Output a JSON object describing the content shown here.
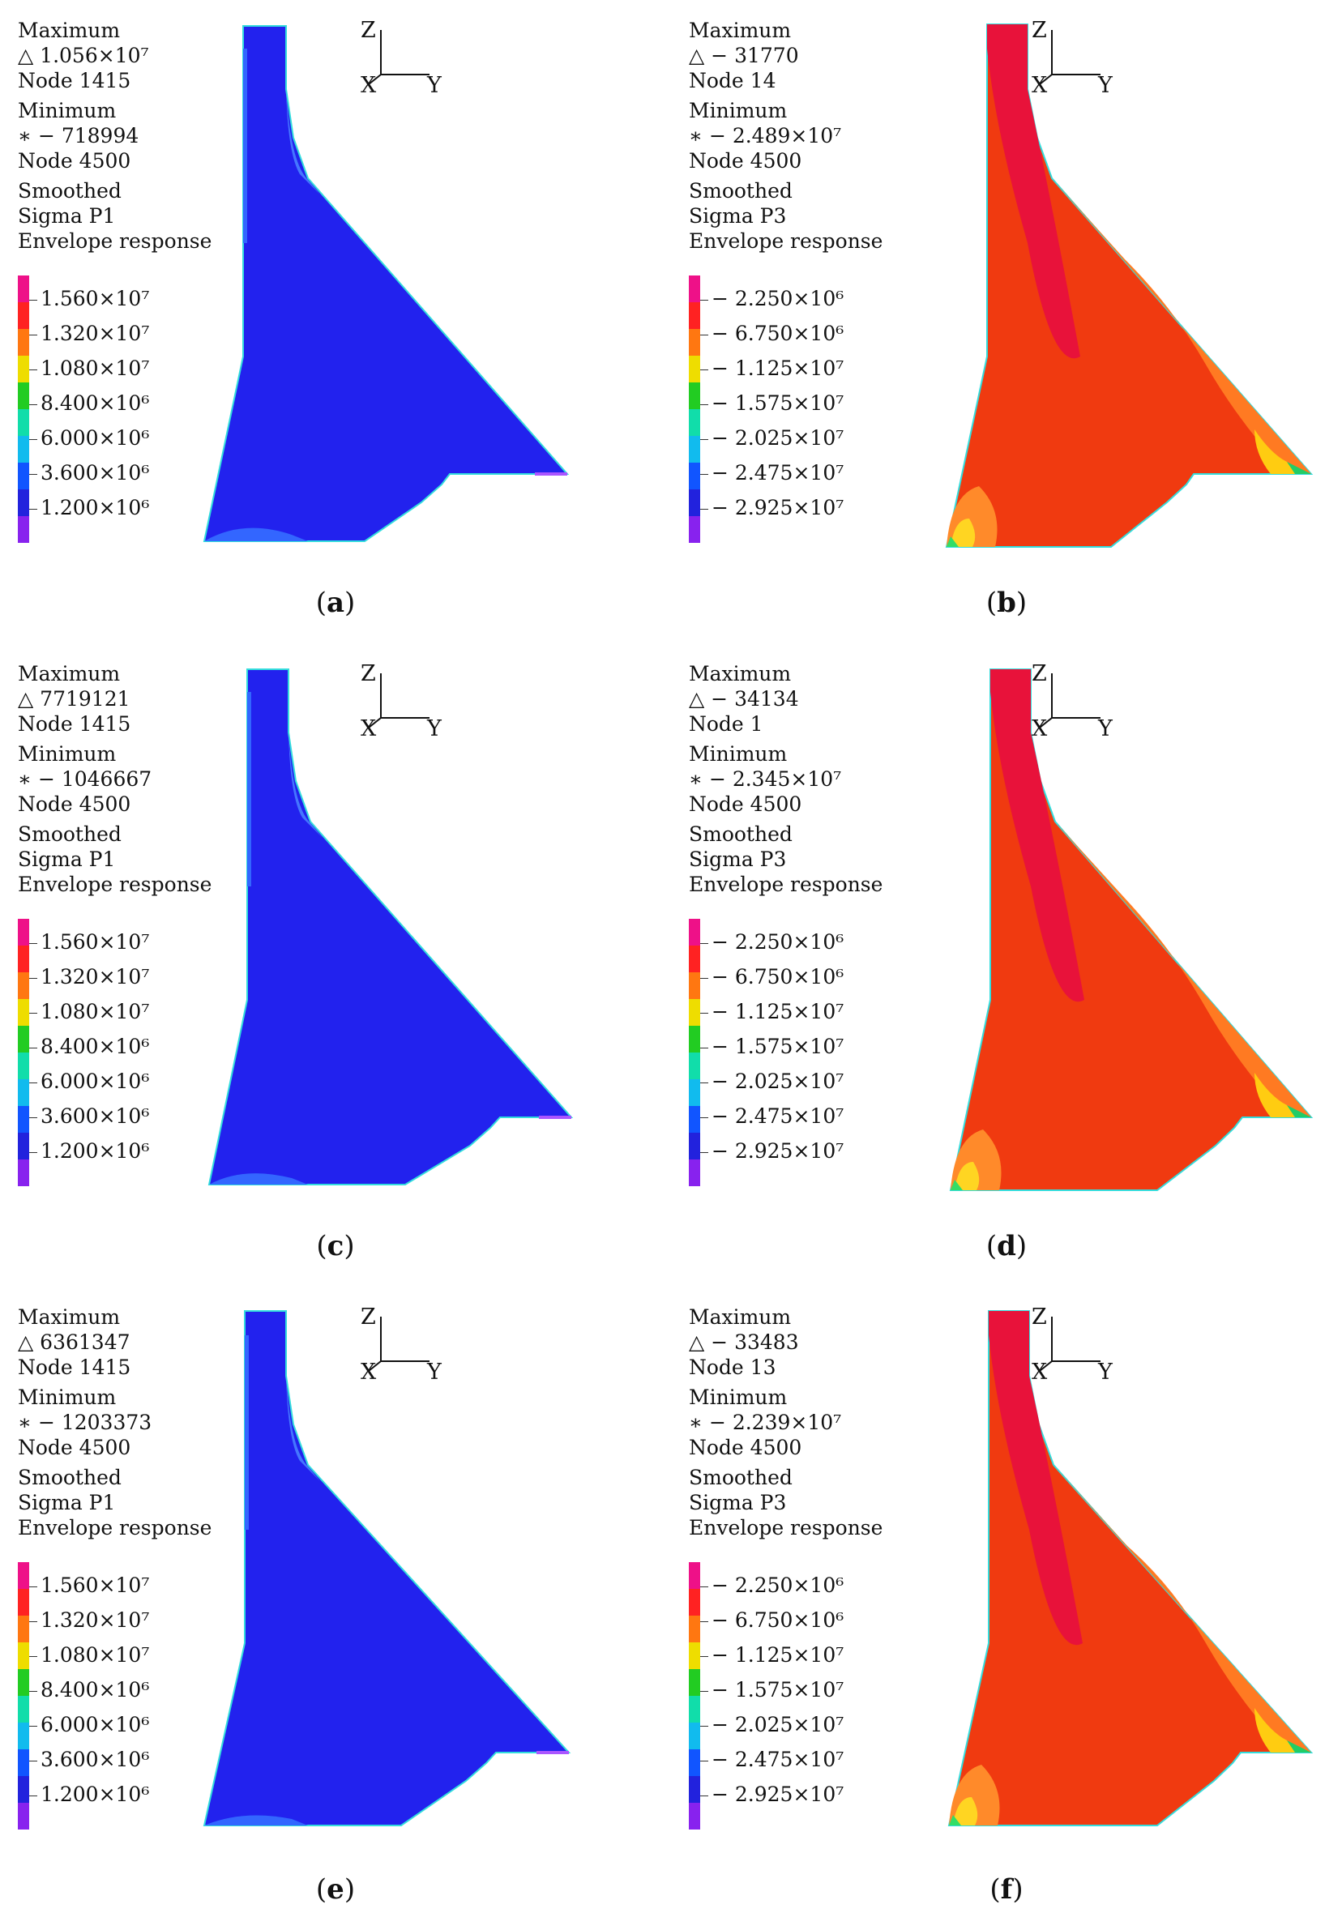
{
  "colors": {
    "p1_fill": "#2222ee",
    "p3_fill": "#f03a10",
    "p3_top": "#e8123a",
    "legend_p1": [
      "#ee1188",
      "#ff2222",
      "#ff7711",
      "#eedd00",
      "#22cc22",
      "#11ddaa",
      "#11bbee",
      "#1155ff",
      "#2222dd",
      "#8822ee"
    ],
    "legend_p3": [
      "#ee1188",
      "#ff2222",
      "#ff7711",
      "#eedd00",
      "#22cc22",
      "#11ddaa",
      "#11bbee",
      "#1155ff",
      "#2222dd",
      "#8822ee"
    ]
  },
  "axes": {
    "z": "Z",
    "x": "X",
    "y": "Y"
  },
  "panels": [
    {
      "id": "a",
      "quantity": "P1",
      "max_label": "Maximum",
      "max_value": "△ 1.056×10⁷",
      "max_node": "Node 1415",
      "min_label": "Minimum",
      "min_value": "∗ − 718994",
      "min_node": "Node 4500",
      "desc1": "Smoothed",
      "desc2": "Sigma P1",
      "desc3": "Envelope response",
      "legend": [
        "1.560×10⁷",
        "1.320×10⁷",
        "1.080×10⁷",
        "8.400×10⁶",
        "6.000×10⁶",
        "3.600×10⁶",
        "1.200×10⁶"
      ],
      "caption_open": "(",
      "caption_letter": "a",
      "caption_close": ")"
    },
    {
      "id": "b",
      "quantity": "P3",
      "max_label": "Maximum",
      "max_value": "△ − 31770",
      "max_node": "Node 14",
      "min_label": "Minimum",
      "min_value": "∗ − 2.489×10⁷",
      "min_node": "Node 4500",
      "desc1": "Smoothed",
      "desc2": "Sigma P3",
      "desc3": "Envelope response",
      "legend": [
        "− 2.250×10⁶",
        "− 6.750×10⁶",
        "− 1.125×10⁷",
        "− 1.575×10⁷",
        "− 2.025×10⁷",
        "− 2.475×10⁷",
        "− 2.925×10⁷"
      ],
      "caption_open": "(",
      "caption_letter": "b",
      "caption_close": ")"
    },
    {
      "id": "c",
      "quantity": "P1",
      "max_label": "Maximum",
      "max_value": "△ 7719121",
      "max_node": "Node 1415",
      "min_label": "Minimum",
      "min_value": "∗ − 1046667",
      "min_node": "Node 4500",
      "desc1": "Smoothed",
      "desc2": "Sigma P1",
      "desc3": "Envelope response",
      "legend": [
        "1.560×10⁷",
        "1.320×10⁷",
        "1.080×10⁷",
        "8.400×10⁶",
        "6.000×10⁶",
        "3.600×10⁶",
        "1.200×10⁶"
      ],
      "caption_open": "(",
      "caption_letter": "c",
      "caption_close": ")"
    },
    {
      "id": "d",
      "quantity": "P3",
      "max_label": "Maximum",
      "max_value": "△ − 34134",
      "max_node": "Node 1",
      "min_label": "Minimum",
      "min_value": "∗ − 2.345×10⁷",
      "min_node": "Node 4500",
      "desc1": "Smoothed",
      "desc2": "Sigma P3",
      "desc3": "Envelope response",
      "legend": [
        "− 2.250×10⁶",
        "− 6.750×10⁶",
        "− 1.125×10⁷",
        "− 1.575×10⁷",
        "− 2.025×10⁷",
        "− 2.475×10⁷",
        "− 2.925×10⁷"
      ],
      "caption_open": "(",
      "caption_letter": "d",
      "caption_close": ")"
    },
    {
      "id": "e",
      "quantity": "P1",
      "max_label": "Maximum",
      "max_value": "△ 6361347",
      "max_node": "Node 1415",
      "min_label": "Minimum",
      "min_value": "∗ − 1203373",
      "min_node": "Node 4500",
      "desc1": "Smoothed",
      "desc2": "Sigma P1",
      "desc3": "Envelope response",
      "legend": [
        "1.560×10⁷",
        "1.320×10⁷",
        "1.080×10⁷",
        "8.400×10⁶",
        "6.000×10⁶",
        "3.600×10⁶",
        "1.200×10⁶"
      ],
      "caption_open": "(",
      "caption_letter": "e",
      "caption_close": ")"
    },
    {
      "id": "f",
      "quantity": "P3",
      "max_label": "Maximum",
      "max_value": "△ − 33483",
      "max_node": "Node 13",
      "min_label": "Minimum",
      "min_value": "∗ − 2.239×10⁷",
      "min_node": "Node 4500",
      "desc1": "Smoothed",
      "desc2": "Sigma P3",
      "desc3": "Envelope response",
      "legend": [
        "− 2.250×10⁶",
        "− 6.750×10⁶",
        "− 1.125×10⁷",
        "− 1.575×10⁷",
        "− 2.025×10⁷",
        "− 2.475×10⁷",
        "− 2.925×10⁷"
      ],
      "caption_open": "(",
      "caption_letter": "f",
      "caption_close": ")"
    }
  ]
}
